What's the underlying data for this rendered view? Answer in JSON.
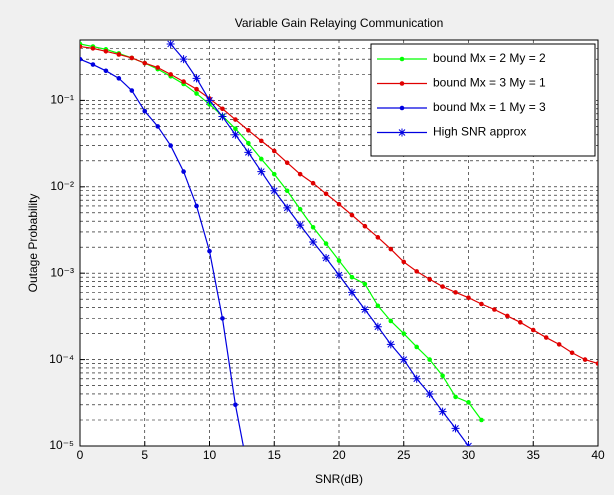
{
  "chart_data": {
    "type": "line",
    "title": "Variable Gain Relaying Communication",
    "x_label": "SNR(dB)",
    "y_label": "Outage Probability",
    "y_scale": "log",
    "grid": true,
    "minor_grid": true,
    "legend": "top-right",
    "xlim": [
      0,
      40
    ],
    "xticks": [
      0,
      5,
      10,
      15,
      20,
      25,
      30,
      35,
      40
    ],
    "ylim": [
      1e-05,
      0.5
    ],
    "yticks": [
      {
        "value": 1e-05,
        "label": "10⁻⁵"
      },
      {
        "value": 0.0001,
        "label": "10⁻⁴"
      },
      {
        "value": 0.001,
        "label": "10⁻³"
      },
      {
        "value": 0.01,
        "label": "10⁻²"
      },
      {
        "value": 0.1,
        "label": "10⁻¹"
      }
    ],
    "series": [
      {
        "name": "bound Mx = 2 My = 2",
        "color": "#00ff00",
        "marker": "dot",
        "x": [
          0,
          1,
          2,
          3,
          4,
          5,
          6,
          7,
          8,
          9,
          10,
          11,
          12,
          13,
          14,
          15,
          16,
          17,
          18,
          19,
          20,
          21,
          22,
          23,
          24,
          25,
          26,
          27,
          28,
          29,
          30,
          31
        ],
        "values": [
          0.45,
          0.42,
          0.39,
          0.35,
          0.31,
          0.27,
          0.23,
          0.19,
          0.155,
          0.12,
          0.09,
          0.066,
          0.047,
          0.032,
          0.021,
          0.014,
          0.009,
          0.0055,
          0.0034,
          0.0022,
          0.0014,
          0.0009,
          0.00075,
          0.00042,
          0.00028,
          0.0002,
          0.00014,
          0.0001,
          6.5e-05,
          3.7e-05,
          3.2e-05,
          2e-05
        ]
      },
      {
        "name": "bound Mx = 3 My = 1",
        "color": "#e00000",
        "marker": "dot",
        "x": [
          0,
          1,
          2,
          3,
          4,
          5,
          6,
          7,
          8,
          9,
          10,
          11,
          12,
          13,
          14,
          15,
          16,
          17,
          18,
          19,
          20,
          21,
          22,
          23,
          24,
          25,
          26,
          27,
          28,
          29,
          30,
          31,
          32,
          33,
          34,
          35,
          36,
          37,
          38,
          39,
          40
        ],
        "values": [
          0.42,
          0.4,
          0.37,
          0.34,
          0.31,
          0.27,
          0.24,
          0.2,
          0.165,
          0.135,
          0.105,
          0.08,
          0.06,
          0.045,
          0.034,
          0.026,
          0.019,
          0.014,
          0.011,
          0.0083,
          0.0063,
          0.0047,
          0.0035,
          0.0026,
          0.0019,
          0.00135,
          0.00105,
          0.00085,
          0.0007,
          0.0006,
          0.00052,
          0.00044,
          0.00038,
          0.00032,
          0.00027,
          0.00022,
          0.00018,
          0.00015,
          0.00012,
          0.0001,
          9e-05
        ]
      },
      {
        "name": "bound Mx = 1 My = 3",
        "color": "#0000e0",
        "marker": "dot",
        "x": [
          0,
          1,
          2,
          3,
          4,
          5,
          6,
          7,
          8,
          9,
          10,
          11,
          12,
          13
        ],
        "values": [
          0.3,
          0.26,
          0.22,
          0.18,
          0.13,
          0.075,
          0.05,
          0.03,
          0.015,
          0.006,
          0.0018,
          0.0003,
          3e-05,
          5e-06
        ]
      },
      {
        "name": "High SNR approx",
        "color": "#0000e0",
        "marker": "star",
        "x": [
          7,
          8,
          9,
          10,
          11,
          12,
          13,
          14,
          15,
          16,
          17,
          18,
          19,
          20,
          21,
          22,
          23,
          24,
          25,
          26,
          27,
          28,
          29,
          30
        ],
        "values": [
          0.45,
          0.3,
          0.18,
          0.1,
          0.065,
          0.04,
          0.025,
          0.015,
          0.009,
          0.0057,
          0.0036,
          0.0023,
          0.0015,
          0.00095,
          0.0006,
          0.00038,
          0.00024,
          0.00015,
          0.0001,
          6e-05,
          4e-05,
          2.5e-05,
          1.6e-05,
          1e-05
        ]
      }
    ]
  }
}
